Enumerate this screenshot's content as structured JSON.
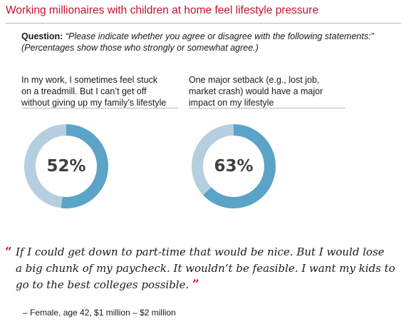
{
  "title": "Working millionaires with children at home feel lifestyle pressure",
  "question": {
    "label": "Question:",
    "text": "“Please indicate whether you agree or disagree with the following statements:”",
    "note": "(Percentages show those who strongly or somewhat agree.)"
  },
  "chart_data": [
    {
      "type": "pie",
      "title": "In my work, I sometimes feel stuck on a treadmill. But I can’t get off without giving up my family’s lifestyle",
      "value_label": "52%",
      "values": [
        52,
        48
      ],
      "colors": [
        "#5ba3c7",
        "#b5cfe0"
      ]
    },
    {
      "type": "pie",
      "title": "One major setback (e.g., lost job, market crash) would have a major impact on my lifestyle",
      "value_label": "63%",
      "values": [
        63,
        37
      ],
      "colors": [
        "#5ba3c7",
        "#b5cfe0"
      ]
    }
  ],
  "panels": [
    {
      "label_line1": "In my work, I sometimes feel stuck",
      "label_line2": "on a treadmill. But I can’t get off",
      "label_line3": "without giving up my family’s lifestyle",
      "pct": "52%"
    },
    {
      "label_line1": "One major setback (e.g., lost job,",
      "label_line2": "market crash) would have a major",
      "label_line3": "impact on my lifestyle",
      "pct": "63%"
    }
  ],
  "quote": {
    "open_mark": "“",
    "line1": "If I could get down to part-time that would be nice. But I would lose",
    "line2": "a big chunk of my paycheck. It wouldn’t be feasible. I want my kids to",
    "line3": "go to the best colleges possible.",
    "close_mark": "”",
    "attribution": "– Female, age 42, $1 million – $2 million"
  },
  "colors": {
    "accent": "#c8102e",
    "agree": "#5ba3c7",
    "rest": "#b5cfe0"
  }
}
